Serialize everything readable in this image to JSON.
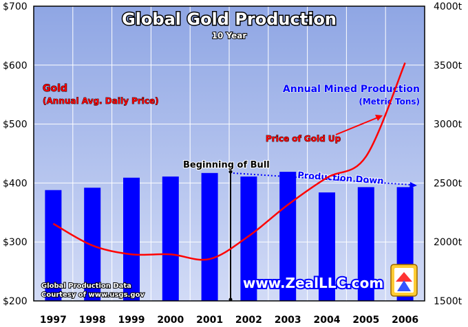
{
  "chart_data": {
    "type": "bar+line",
    "title": "Global Gold Production",
    "subtitle": "10 Year",
    "categories": [
      "1997",
      "1998",
      "1999",
      "2000",
      "2001",
      "2002",
      "2003",
      "2004",
      "2005",
      "2006"
    ],
    "series": [
      {
        "name": "Annual Mined Production (Metric Tons)",
        "type": "bar",
        "axis": "right",
        "values": [
          2440,
          2460,
          2545,
          2555,
          2585,
          2555,
          2595,
          2420,
          2465,
          2465
        ]
      },
      {
        "name": "Gold (Annual Avg. Daily Price)",
        "type": "line",
        "axis": "left",
        "values": [
          331,
          294,
          279,
          279,
          271,
          310,
          363,
          409,
          445,
          604
        ]
      }
    ],
    "left_axis": {
      "label": "Gold (Annual Avg. Daily Price)",
      "range": [
        200,
        700
      ],
      "ticks": [
        "$200",
        "$300",
        "$400",
        "$500",
        "$600",
        "$700"
      ],
      "tick_values": [
        200,
        300,
        400,
        500,
        600,
        700
      ]
    },
    "right_axis": {
      "label": "Annual Mined Production",
      "sublabel": "(Metric Tons)",
      "range": [
        1500,
        4000
      ],
      "ticks": [
        "1500t",
        "2000t",
        "2500t",
        "3000t",
        "3500t",
        "4000t"
      ],
      "tick_values": [
        1500,
        2000,
        2500,
        3000,
        3500,
        4000
      ]
    },
    "annotations": {
      "gold_label": "Gold",
      "gold_sublabel": "(Annual Avg. Daily Price)",
      "production_label": "Annual Mined Production",
      "production_sublabel": "(Metric Tons)",
      "price_up": "Price of Gold Up",
      "bull": "Beginning of Bull",
      "production_down": "Production Down",
      "source_line1": "Global Production Data",
      "source_line2": "Courtesy of www.usgs.gov",
      "watermark": "www.ZealLLC.com"
    },
    "colors": {
      "bar": "#0000ff",
      "line": "#ff0000",
      "production_text": "#0000ff",
      "gold_text": "#ff0000",
      "bg_top": "#8fa6e4",
      "bg_bottom": "#c9d4f4"
    },
    "grid": true
  }
}
